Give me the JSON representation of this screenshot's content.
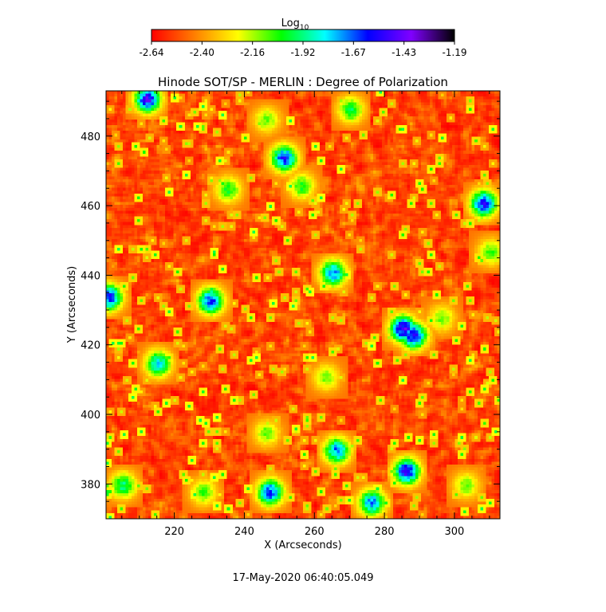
{
  "chart_data": {
    "type": "heatmap",
    "title": "Hinode SOT/SP - MERLIN : Degree of Polarization",
    "xlabel": "X (Arcseconds)",
    "ylabel": "Y (Arcseconds)",
    "xlim": [
      200.5,
      313
    ],
    "ylim": [
      370,
      493
    ],
    "x_ticks": [
      220,
      240,
      260,
      280,
      300
    ],
    "y_ticks": [
      380,
      400,
      420,
      440,
      460,
      480
    ],
    "colorbar": {
      "label_base": "Log",
      "label_sub": "10",
      "range": [
        -2.64,
        -1.19
      ],
      "ticks": [
        "-2.64",
        "-2.40",
        "-2.16",
        "-1.92",
        "-1.67",
        "-1.43",
        "-1.19"
      ],
      "colormap": [
        "#ff0000",
        "#ff7f00",
        "#ffff00",
        "#00ff00",
        "#00ffff",
        "#0000ff",
        "#8000ff",
        "#000000"
      ]
    },
    "field": {
      "background_log_range": [
        -2.64,
        -2.3
      ],
      "enhanced_regions": [
        {
          "x": 212,
          "y": 491,
          "peak": -1.4
        },
        {
          "x": 246,
          "y": 485,
          "peak": -2.05
        },
        {
          "x": 251,
          "y": 474,
          "peak": -1.5
        },
        {
          "x": 256,
          "y": 466,
          "peak": -1.95
        },
        {
          "x": 270,
          "y": 488,
          "peak": -1.9
        },
        {
          "x": 308,
          "y": 461,
          "peak": -1.45
        },
        {
          "x": 235,
          "y": 465,
          "peak": -1.95
        },
        {
          "x": 265,
          "y": 441,
          "peak": -1.6
        },
        {
          "x": 230,
          "y": 433,
          "peak": -1.5
        },
        {
          "x": 201,
          "y": 434,
          "peak": -1.5
        },
        {
          "x": 285,
          "y": 425,
          "peak": -1.35
        },
        {
          "x": 288,
          "y": 423,
          "peak": -1.4
        },
        {
          "x": 215,
          "y": 415,
          "peak": -1.7
        },
        {
          "x": 263,
          "y": 411,
          "peak": -2.05
        },
        {
          "x": 246,
          "y": 395,
          "peak": -2.05
        },
        {
          "x": 266,
          "y": 390,
          "peak": -1.6
        },
        {
          "x": 286,
          "y": 384,
          "peak": -1.4
        },
        {
          "x": 247,
          "y": 378,
          "peak": -1.5
        },
        {
          "x": 276,
          "y": 375,
          "peak": -1.6
        },
        {
          "x": 205,
          "y": 380,
          "peak": -1.85
        },
        {
          "x": 228,
          "y": 378,
          "peak": -2.0
        },
        {
          "x": 303,
          "y": 380,
          "peak": -2.05
        },
        {
          "x": 296,
          "y": 428,
          "peak": -2.05
        },
        {
          "x": 310,
          "y": 447,
          "peak": -2.0
        }
      ]
    }
  },
  "footer": {
    "timestamp": "17-May-2020 06:40:05.049"
  }
}
